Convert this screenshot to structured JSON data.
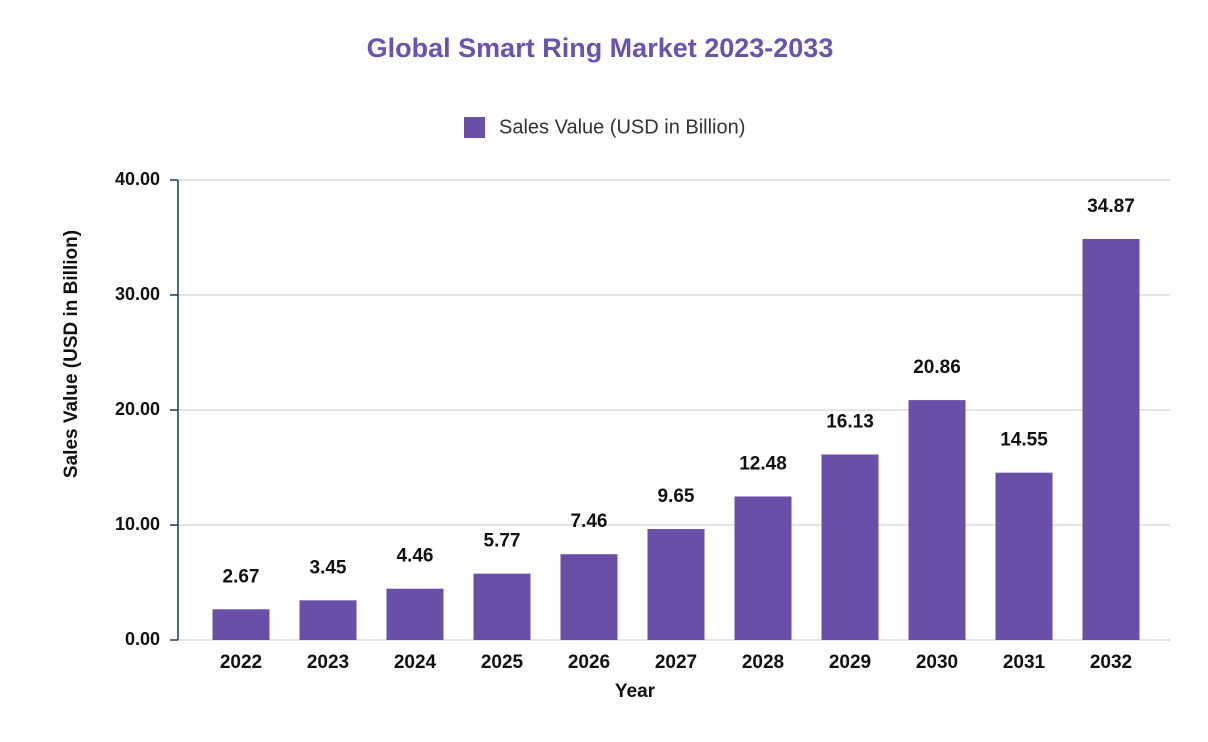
{
  "chart_data": {
    "type": "bar",
    "title": "Global Smart Ring Market 2023-2033",
    "x_label": "Year",
    "y_label": "Sales Value (USD in Billion)",
    "categories": [
      "2022",
      "2023",
      "2024",
      "2025",
      "2026",
      "2027",
      "2028",
      "2029",
      "2030",
      "2031",
      "2032"
    ],
    "series": [
      {
        "name": "Sales Value (USD in Billion)",
        "color": "#6a4fa8",
        "values": [
          2.67,
          3.45,
          4.46,
          5.77,
          7.46,
          9.65,
          12.48,
          16.13,
          20.86,
          14.55,
          34.87
        ]
      }
    ],
    "ylim": [
      0,
      40
    ],
    "yticks": [
      {
        "value": 0,
        "label": "0.00"
      },
      {
        "value": 10,
        "label": "10.00"
      },
      {
        "value": 20,
        "label": "20.00"
      },
      {
        "value": 30,
        "label": "30.00"
      },
      {
        "value": 40,
        "label": "40.00"
      }
    ],
    "grid": true
  }
}
